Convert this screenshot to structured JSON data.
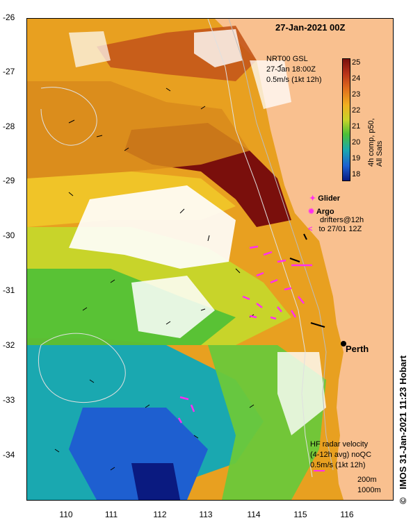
{
  "title": "27-Jan-2021 00Z",
  "nrt": {
    "line1": "NRT00 GSL",
    "line2": "27-Jan 18:00Z",
    "line3": "0.5m/s (1kt 12h)"
  },
  "colorbar": {
    "ticks": [
      "25",
      "24",
      "23",
      "22",
      "21",
      "20",
      "19",
      "18"
    ],
    "label": "4h comp, p50, All Sats"
  },
  "legend": {
    "glider": "Glider",
    "argo": "Argo",
    "drifters_1": "drifters@12h",
    "drifters_2": "to 27/01 12Z"
  },
  "city": "Perth",
  "hf": {
    "line1": "HF radar velocity",
    "line2": "(4-12h avg) noQC",
    "line3": "0.5m/s (1kt 12h)"
  },
  "contours": {
    "c200": "200m",
    "c1000": "1000m"
  },
  "credit": "IMOS 31-Jan-2021 11:23 Hobart",
  "copyright": "©",
  "axes": {
    "lat": [
      "-26",
      "-27",
      "-28",
      "-29",
      "-30",
      "-31",
      "-32",
      "-33",
      "-34"
    ],
    "lon": [
      "110",
      "111",
      "112",
      "113",
      "114",
      "115",
      "116"
    ]
  },
  "colors": {
    "land": "#f9c08f",
    "sst_25": "#7a0f0c",
    "sst_24": "#c4561a",
    "sst_23": "#f0b020",
    "sst_22": "#c8d42a",
    "sst_21": "#4cc036",
    "sst_20": "#1aa8b0",
    "sst_19": "#1e5fd0",
    "sst_18": "#0a1a80",
    "drifter": "#ff2ef0"
  }
}
